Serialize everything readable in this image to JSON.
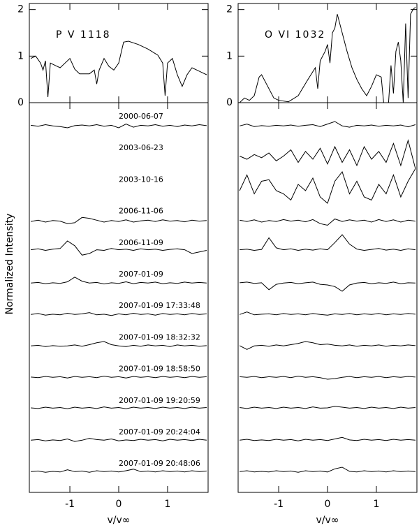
{
  "chart_data": [
    {
      "type": "line",
      "annotation": "P V 1118",
      "color": "#000000",
      "xlim": [
        -1.83,
        1.83
      ],
      "ylim": [
        0,
        2.13
      ],
      "xticks": [
        -1,
        0,
        1
      ],
      "yticks": [
        0,
        1,
        2
      ],
      "x": [
        -1.8,
        -1.7,
        -1.6,
        -1.55,
        -1.5,
        -1.45,
        -1.4,
        -1.3,
        -1.2,
        -1.1,
        -1.0,
        -0.9,
        -0.8,
        -0.6,
        -0.5,
        -0.45,
        -0.4,
        -0.3,
        -0.2,
        -0.1,
        0,
        0.1,
        0.2,
        0.4,
        0.6,
        0.8,
        0.9,
        0.95,
        1.0,
        1.1,
        1.2,
        1.3,
        1.4,
        1.5,
        1.6,
        1.7,
        1.8
      ],
      "series": [
        {
          "values": [
            0.95,
            1.0,
            0.85,
            0.7,
            0.9,
            0.12,
            0.85,
            0.8,
            0.75,
            0.85,
            0.95,
            0.72,
            0.62,
            0.62,
            0.7,
            0.4,
            0.7,
            0.95,
            0.78,
            0.7,
            0.85,
            1.3,
            1.32,
            1.25,
            1.15,
            1.02,
            0.85,
            0.15,
            0.85,
            0.95,
            0.6,
            0.35,
            0.6,
            0.75,
            0.7,
            0.65,
            0.6
          ]
        }
      ]
    },
    {
      "type": "line",
      "annotation": "O VI 1032",
      "color": "#000000",
      "xlim": [
        -1.83,
        1.83
      ],
      "ylim": [
        0,
        2.13
      ],
      "xticks": [
        -1,
        0,
        1
      ],
      "yticks": [
        0,
        1,
        2
      ],
      "x": [
        -1.8,
        -1.7,
        -1.6,
        -1.5,
        -1.4,
        -1.35,
        -1.25,
        -1.1,
        -1.0,
        -0.8,
        -0.6,
        -0.4,
        -0.25,
        -0.2,
        -0.15,
        -0.05,
        0,
        0.05,
        0.1,
        0.15,
        0.2,
        0.3,
        0.4,
        0.5,
        0.6,
        0.7,
        0.8,
        0.9,
        1.0,
        1.1,
        1.15,
        1.25,
        1.3,
        1.35,
        1.4,
        1.45,
        1.5,
        1.55,
        1.6,
        1.65,
        1.7,
        1.75,
        1.8
      ],
      "series": [
        {
          "values": [
            0,
            0.1,
            0.05,
            0.15,
            0.55,
            0.6,
            0.4,
            0.1,
            0.05,
            0.02,
            0.15,
            0.5,
            0.75,
            0.3,
            0.9,
            1.1,
            1.25,
            0.85,
            1.5,
            1.6,
            1.9,
            1.5,
            1.1,
            0.75,
            0.5,
            0.3,
            0.15,
            0.35,
            0.6,
            0.55,
            0.0,
            0.0,
            0.8,
            0.2,
            1.1,
            1.3,
            0.9,
            0.0,
            1.7,
            0.1,
            1.9,
            2.0,
            2.05
          ]
        }
      ]
    },
    {
      "type": "line",
      "ylabel": "Normalized Intensity",
      "xlabel": "v/v∞",
      "color": "#000000",
      "xlim": [
        -1.83,
        1.83
      ],
      "ylim": [
        0,
        12.4
      ],
      "xticks": [
        -1,
        0,
        1
      ],
      "x": [
        -1.8,
        -1.65,
        -1.5,
        -1.35,
        -1.2,
        -1.05,
        -0.9,
        -0.75,
        -0.6,
        -0.45,
        -0.3,
        -0.15,
        0,
        0.15,
        0.3,
        0.45,
        0.6,
        0.75,
        0.9,
        1.05,
        1.2,
        1.35,
        1.5,
        1.65,
        1.8
      ],
      "series": [
        {
          "name": "2000-06-07",
          "values": [
            11.68,
            11.65,
            11.7,
            11.66,
            11.64,
            11.6,
            11.67,
            11.69,
            11.66,
            11.7,
            11.65,
            11.68,
            11.6,
            11.72,
            11.62,
            11.68,
            11.66,
            11.7,
            11.65,
            11.68,
            11.64,
            11.69,
            11.66,
            11.7,
            11.67
          ]
        },
        {
          "name": "2003-06-23",
          "values": [
            null,
            null,
            null,
            null,
            null,
            null,
            null,
            null,
            null,
            null,
            null,
            null,
            null,
            null,
            null,
            null,
            null,
            null,
            null,
            null,
            null,
            null,
            null,
            null,
            null
          ]
        },
        {
          "name": "2003-10-16",
          "values": [
            null,
            null,
            null,
            null,
            null,
            null,
            null,
            null,
            null,
            null,
            null,
            null,
            null,
            null,
            null,
            null,
            null,
            null,
            null,
            null,
            null,
            null,
            null,
            null,
            null
          ]
        },
        {
          "name": "2006-11-06",
          "values": [
            8.62,
            8.66,
            8.6,
            8.65,
            8.63,
            8.55,
            8.58,
            8.75,
            8.72,
            8.66,
            8.6,
            8.65,
            8.62,
            8.67,
            8.6,
            8.64,
            8.66,
            8.62,
            8.67,
            8.63,
            8.65,
            8.61,
            8.66,
            8.63,
            8.65
          ]
        },
        {
          "name": "2006-11-09",
          "values": [
            7.72,
            7.75,
            7.7,
            7.74,
            7.76,
            8.0,
            7.85,
            7.55,
            7.6,
            7.72,
            7.7,
            7.76,
            7.72,
            7.74,
            7.7,
            7.75,
            7.72,
            7.74,
            7.7,
            7.73,
            7.75,
            7.72,
            7.6,
            7.65,
            7.7
          ]
        },
        {
          "name": "2007-01-09",
          "values": [
            6.66,
            6.68,
            6.64,
            6.67,
            6.65,
            6.7,
            6.85,
            6.72,
            6.66,
            6.68,
            6.63,
            6.67,
            6.65,
            6.7,
            6.64,
            6.68,
            6.66,
            6.69,
            6.64,
            6.67,
            6.65,
            6.69,
            6.66,
            6.68,
            6.66
          ]
        },
        {
          "name": "2007-01-09 17:33:48",
          "values": [
            5.66,
            5.69,
            5.64,
            5.67,
            5.65,
            5.7,
            5.66,
            5.68,
            5.72,
            5.65,
            5.67,
            5.63,
            5.68,
            5.65,
            5.7,
            5.66,
            5.68,
            5.64,
            5.69,
            5.66,
            5.68,
            5.65,
            5.69,
            5.66,
            5.68
          ]
        },
        {
          "name": "2007-01-09 18:32:32",
          "values": [
            4.66,
            4.68,
            4.64,
            4.67,
            4.65,
            4.66,
            4.69,
            4.65,
            4.7,
            4.76,
            4.8,
            4.7,
            4.66,
            4.64,
            4.68,
            4.65,
            4.69,
            4.66,
            4.68,
            4.64,
            4.69,
            4.66,
            4.68,
            4.65,
            4.67
          ]
        },
        {
          "name": "2007-01-09 18:58:50",
          "values": [
            3.67,
            3.65,
            3.69,
            3.66,
            3.68,
            3.64,
            3.69,
            3.66,
            3.68,
            3.65,
            3.7,
            3.66,
            3.68,
            3.64,
            3.69,
            3.66,
            3.68,
            3.65,
            3.69,
            3.66,
            3.68,
            3.65,
            3.69,
            3.66,
            3.68
          ]
        },
        {
          "name": "2007-01-09 19:20:59",
          "values": [
            2.69,
            2.67,
            2.71,
            2.68,
            2.7,
            2.66,
            2.71,
            2.68,
            2.7,
            2.67,
            2.72,
            2.68,
            2.7,
            2.66,
            2.71,
            2.68,
            2.7,
            2.67,
            2.71,
            2.68,
            2.7,
            2.67,
            2.71,
            2.68,
            2.7
          ]
        },
        {
          "name": "2007-01-09 20:24:04",
          "values": [
            1.66,
            1.68,
            1.64,
            1.67,
            1.65,
            1.7,
            1.62,
            1.66,
            1.72,
            1.68,
            1.66,
            1.7,
            1.64,
            1.67,
            1.65,
            1.69,
            1.66,
            1.68,
            1.64,
            1.69,
            1.66,
            1.68,
            1.65,
            1.69,
            1.66
          ]
        },
        {
          "name": "2007-01-09 20:48:06",
          "values": [
            0.66,
            0.68,
            0.64,
            0.67,
            0.65,
            0.72,
            0.66,
            0.68,
            0.64,
            0.69,
            0.66,
            0.68,
            0.65,
            0.69,
            0.74,
            0.66,
            0.68,
            0.65,
            0.69,
            0.66,
            0.68,
            0.65,
            0.69,
            0.66,
            0.68
          ]
        }
      ]
    },
    {
      "type": "line",
      "xlabel": "v/v∞",
      "color": "#000000",
      "xlim": [
        -1.83,
        1.83
      ],
      "ylim": [
        0,
        12.4
      ],
      "xticks": [
        -1,
        0,
        1
      ],
      "x": [
        -1.8,
        -1.65,
        -1.5,
        -1.35,
        -1.2,
        -1.05,
        -0.9,
        -0.75,
        -0.6,
        -0.45,
        -0.3,
        -0.15,
        0,
        0.15,
        0.3,
        0.45,
        0.6,
        0.75,
        0.9,
        1.05,
        1.2,
        1.35,
        1.5,
        1.65,
        1.8
      ],
      "series": [
        {
          "values": [
            11.66,
            11.72,
            11.64,
            11.67,
            11.65,
            11.68,
            11.66,
            11.69,
            11.65,
            11.68,
            11.7,
            11.64,
            11.72,
            11.8,
            11.66,
            11.62,
            11.68,
            11.66,
            11.69,
            11.65,
            11.68,
            11.66,
            11.69,
            11.63,
            11.7
          ]
        },
        {
          "values": [
            10.7,
            10.6,
            10.75,
            10.65,
            10.8,
            10.55,
            10.7,
            10.9,
            10.5,
            10.85,
            10.6,
            10.95,
            10.45,
            11.0,
            10.5,
            10.9,
            10.4,
            11.0,
            10.6,
            10.85,
            10.5,
            11.1,
            10.4,
            11.2,
            10.3
          ]
        },
        {
          "values": [
            9.6,
            10.1,
            9.5,
            9.9,
            9.95,
            9.6,
            9.5,
            9.3,
            9.8,
            9.6,
            10.0,
            9.4,
            9.2,
            9.9,
            10.2,
            9.5,
            9.9,
            9.4,
            9.3,
            9.8,
            9.5,
            10.1,
            9.4,
            9.9,
            10.3
          ]
        },
        {
          "values": [
            8.66,
            8.62,
            8.67,
            8.6,
            8.65,
            8.62,
            8.68,
            8.63,
            8.66,
            8.61,
            8.68,
            8.55,
            8.5,
            8.7,
            8.62,
            8.67,
            8.63,
            8.66,
            8.6,
            8.68,
            8.62,
            8.67,
            8.6,
            8.66,
            8.63
          ]
        },
        {
          "values": [
            7.72,
            7.74,
            7.7,
            7.73,
            8.1,
            7.78,
            7.72,
            7.75,
            7.7,
            7.74,
            7.71,
            7.75,
            7.72,
            7.95,
            8.2,
            7.9,
            7.74,
            7.7,
            7.73,
            7.76,
            7.71,
            7.74,
            7.7,
            7.75,
            7.72
          ]
        },
        {
          "values": [
            6.67,
            6.69,
            6.65,
            6.67,
            6.45,
            6.62,
            6.66,
            6.68,
            6.64,
            6.67,
            6.69,
            6.62,
            6.6,
            6.55,
            6.4,
            6.6,
            6.66,
            6.68,
            6.64,
            6.67,
            6.65,
            6.69,
            6.64,
            6.67,
            6.66
          ]
        },
        {
          "values": [
            5.66,
            5.74,
            5.65,
            5.67,
            5.68,
            5.65,
            5.69,
            5.66,
            5.68,
            5.65,
            5.69,
            5.66,
            5.64,
            5.68,
            5.66,
            5.69,
            5.65,
            5.68,
            5.66,
            5.69,
            5.65,
            5.68,
            5.66,
            5.69,
            5.67
          ]
        },
        {
          "values": [
            4.67,
            4.55,
            4.66,
            4.68,
            4.65,
            4.69,
            4.66,
            4.7,
            4.74,
            4.8,
            4.76,
            4.7,
            4.72,
            4.68,
            4.66,
            4.69,
            4.65,
            4.68,
            4.66,
            4.69,
            4.65,
            4.68,
            4.66,
            4.69,
            4.67
          ]
        },
        {
          "values": [
            3.68,
            3.66,
            3.69,
            3.65,
            3.68,
            3.66,
            3.69,
            3.65,
            3.7,
            3.66,
            3.68,
            3.65,
            3.6,
            3.62,
            3.66,
            3.69,
            3.65,
            3.68,
            3.66,
            3.69,
            3.65,
            3.68,
            3.66,
            3.69,
            3.67
          ]
        },
        {
          "values": [
            2.7,
            2.67,
            2.71,
            2.68,
            2.7,
            2.67,
            2.71,
            2.68,
            2.7,
            2.67,
            2.72,
            2.68,
            2.69,
            2.74,
            2.71,
            2.68,
            2.7,
            2.67,
            2.71,
            2.68,
            2.7,
            2.67,
            2.71,
            2.68,
            2.7
          ]
        },
        {
          "values": [
            1.66,
            1.69,
            1.65,
            1.67,
            1.65,
            1.69,
            1.66,
            1.68,
            1.64,
            1.69,
            1.66,
            1.68,
            1.65,
            1.7,
            1.75,
            1.67,
            1.65,
            1.69,
            1.66,
            1.68,
            1.65,
            1.69,
            1.66,
            1.68,
            1.66
          ]
        },
        {
          "values": [
            0.66,
            0.69,
            0.65,
            0.67,
            0.65,
            0.69,
            0.66,
            0.68,
            0.64,
            0.69,
            0.66,
            0.68,
            0.65,
            0.75,
            0.8,
            0.67,
            0.65,
            0.69,
            0.66,
            0.68,
            0.65,
            0.69,
            0.66,
            0.68,
            0.66
          ]
        }
      ]
    }
  ]
}
